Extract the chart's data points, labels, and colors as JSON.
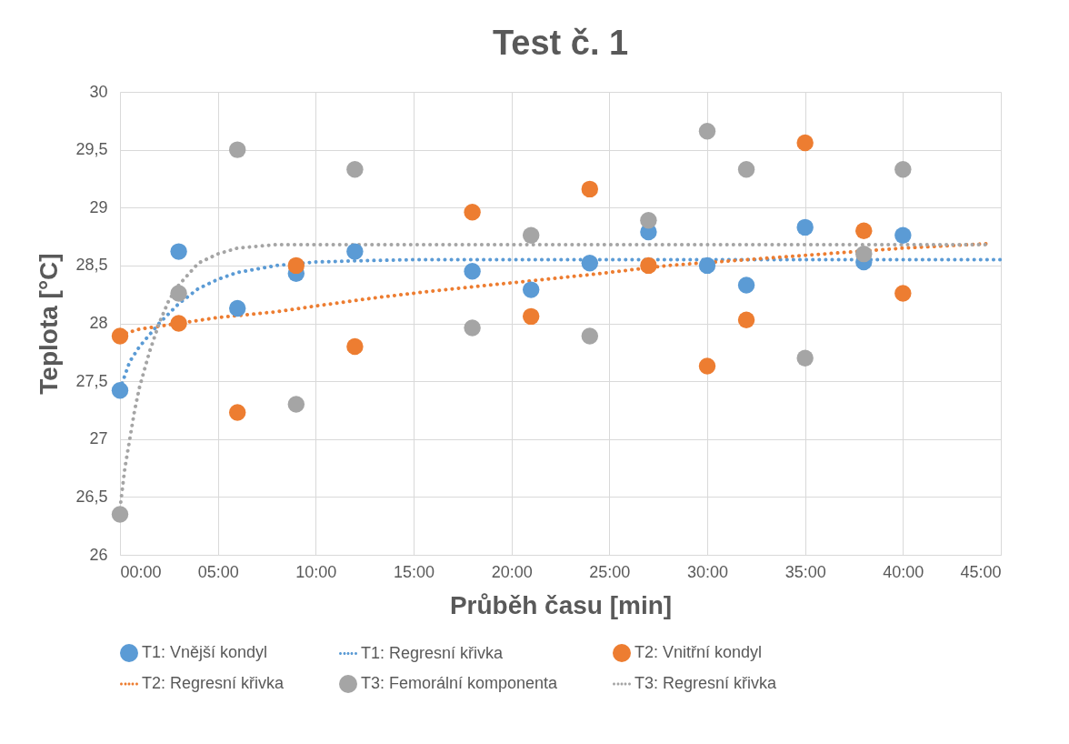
{
  "chart_data": {
    "type": "scatter",
    "title": "Test č. 1",
    "xlabel": "Průběh času [min]",
    "ylabel": "Teplota [°C]",
    "xlim": [
      0,
      45
    ],
    "xticks": [
      {
        "value": 0,
        "label": "00:00"
      },
      {
        "value": 5,
        "label": "05:00"
      },
      {
        "value": 10,
        "label": "10:00"
      },
      {
        "value": 15,
        "label": "15:00"
      },
      {
        "value": 20,
        "label": "20:00"
      },
      {
        "value": 25,
        "label": "25:00"
      },
      {
        "value": 30,
        "label": "30:00"
      },
      {
        "value": 35,
        "label": "35:00"
      },
      {
        "value": 40,
        "label": "40:00"
      },
      {
        "value": 45,
        "label": "45:00"
      }
    ],
    "ylim": [
      26,
      30
    ],
    "yticks": [
      26,
      {
        "value": 26.5,
        "label": "26,5"
      },
      27,
      {
        "value": 27.5,
        "label": "27,5"
      },
      28,
      {
        "value": 28.5,
        "label": "28,5"
      },
      29,
      {
        "value": 29.5,
        "label": "29,5"
      },
      30
    ],
    "grid": true,
    "legend": "bottom",
    "marker": "circle",
    "series": [
      {
        "name": "T1: Vnější kondyl",
        "color": "#5b9bd5",
        "x": [
          0,
          3,
          6,
          9,
          12,
          18,
          21,
          24,
          27,
          30,
          32,
          35,
          38,
          40
        ],
        "values": [
          27.42,
          28.62,
          28.13,
          28.43,
          28.62,
          28.45,
          28.29,
          28.52,
          28.79,
          28.5,
          28.33,
          28.83,
          28.53,
          28.76
        ]
      },
      {
        "type": "line",
        "name": "T1: Regresní křivka",
        "color": "#5b9bd5",
        "line_style": "dotted",
        "marker": "none",
        "x": [
          0,
          0.5,
          1,
          2,
          3,
          4,
          5,
          6,
          8,
          10,
          12,
          15,
          20,
          30,
          45
        ],
        "values": [
          27.43,
          27.67,
          27.8,
          28.0,
          28.17,
          28.3,
          28.38,
          28.44,
          28.5,
          28.53,
          28.54,
          28.55,
          28.55,
          28.55,
          28.55
        ]
      },
      {
        "name": "T2: Vnitřní kondyl",
        "color": "#ed7d31",
        "x": [
          0,
          3,
          6,
          9,
          12,
          18,
          21,
          24,
          27,
          30,
          32,
          35,
          38,
          40
        ],
        "values": [
          27.89,
          28.0,
          27.23,
          28.5,
          27.8,
          28.96,
          28.06,
          29.16,
          28.5,
          27.63,
          28.03,
          29.56,
          28.8,
          28.26
        ]
      },
      {
        "type": "line",
        "name": "T2: Regresní křivka",
        "color": "#ed7d31",
        "line_style": "dotted",
        "marker": "none",
        "x": [
          0,
          1,
          3,
          5,
          8,
          10,
          13,
          16,
          20,
          24,
          28,
          32,
          36,
          40,
          44.5
        ],
        "values": [
          27.9,
          27.95,
          28.0,
          28.05,
          28.1,
          28.15,
          28.22,
          28.28,
          28.35,
          28.42,
          28.5,
          28.55,
          28.6,
          28.65,
          28.69
        ]
      },
      {
        "name": "T3: Femorální komponenta",
        "color": "#a5a5a5",
        "x": [
          0,
          3,
          6,
          9,
          12,
          18,
          21,
          24,
          27,
          30,
          32,
          35,
          38,
          40
        ],
        "values": [
          26.35,
          28.26,
          29.5,
          27.3,
          29.33,
          27.96,
          28.76,
          27.89,
          28.89,
          29.66,
          29.33,
          27.7,
          28.6,
          29.33
        ]
      },
      {
        "type": "line",
        "name": "T3: Regresní křivka",
        "color": "#a5a5a5",
        "line_style": "dotted",
        "marker": "none",
        "x": [
          0,
          0.25,
          0.5,
          0.75,
          1,
          1.5,
          2,
          2.5,
          3,
          4,
          5,
          6,
          8,
          12,
          44.5
        ],
        "values": [
          26.4,
          26.75,
          27.0,
          27.25,
          27.45,
          27.75,
          28.0,
          28.2,
          28.33,
          28.52,
          28.6,
          28.65,
          28.68,
          28.68,
          28.68
        ]
      }
    ]
  }
}
